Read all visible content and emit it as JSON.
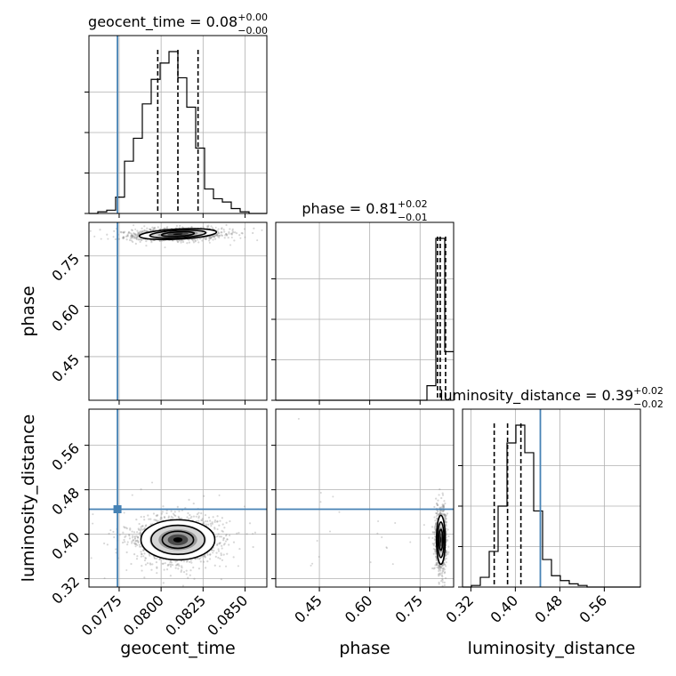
{
  "chart_data": {
    "type": "corner",
    "parameters": [
      "geocent_time",
      "phase",
      "luminosity_distance"
    ],
    "titles": [
      {
        "param": "geocent_time",
        "prefix": "geocent_time = ",
        "median": "0.08",
        "plus": "+0.00",
        "minus": "−0.00"
      },
      {
        "param": "phase",
        "prefix": "phase = ",
        "median": "0.81",
        "plus": "+0.02",
        "minus": "−0.01"
      },
      {
        "param": "luminosity_distance",
        "prefix": "luminosity_distance = ",
        "median": "0.39",
        "plus": "+0.02",
        "minus": "−0.02"
      }
    ],
    "axis_labels": {
      "x": [
        "geocent_time",
        "phase",
        "luminosity_distance"
      ],
      "y": [
        "phase",
        "luminosity_distance"
      ]
    },
    "ranges": {
      "geocent_time": [
        0.0757,
        0.0863
      ],
      "phase": [
        0.32,
        0.85
      ],
      "luminosity_distance": [
        0.305,
        0.625
      ]
    },
    "ticks": {
      "geocent_time": {
        "values": [
          0.0775,
          0.08,
          0.0825,
          0.085
        ],
        "labels": [
          "0.0775",
          "0.0800",
          "0.0825",
          "0.0850"
        ]
      },
      "phase": {
        "values": [
          0.45,
          0.6,
          0.75
        ],
        "labels": [
          "0.45",
          "0.60",
          "0.75"
        ]
      },
      "luminosity_distance": {
        "values": [
          0.32,
          0.4,
          0.48,
          0.56
        ],
        "labels": [
          "0.32",
          "0.40",
          "0.48",
          "0.56"
        ]
      }
    },
    "truths": {
      "geocent_time": 0.0774,
      "phase": null,
      "luminosity_distance": 0.445
    },
    "quantiles": {
      "geocent_time": [
        0.0798,
        0.081,
        0.0822
      ],
      "phase": [
        0.802,
        0.81,
        0.826
      ],
      "luminosity_distance": [
        0.362,
        0.386,
        0.41
      ]
    },
    "hist1d": {
      "geocent_time": {
        "edges_start": 0.0757,
        "bin_width": 0.00053,
        "counts": [
          0,
          1,
          2,
          10,
          32,
          46,
          67,
          82,
          92,
          99,
          83,
          65,
          40,
          15,
          9,
          7,
          3,
          1,
          0,
          0
        ]
      },
      "phase": {
        "edges_start": 0.32,
        "bin_width": 0.0265,
        "counts": [
          0,
          0,
          0,
          0,
          0,
          0,
          0,
          0,
          0,
          0,
          0,
          0,
          0,
          0,
          0,
          0,
          0,
          9,
          100,
          30
        ]
      },
      "luminosity_distance": {
        "edges_start": 0.305,
        "bin_width": 0.016,
        "counts": [
          0,
          1,
          6,
          22,
          50,
          89,
          100,
          83,
          47,
          17,
          7,
          4,
          2,
          1,
          0,
          0,
          0,
          0,
          0,
          0
        ]
      }
    },
    "posterior_2d": [
      {
        "x": "geocent_time",
        "y": "phase",
        "center": [
          0.081,
          0.815
        ],
        "sd": [
          0.00115,
          0.0075
        ],
        "rho": 0.15
      },
      {
        "x": "geocent_time",
        "y": "luminosity_distance",
        "center": [
          0.081,
          0.39
        ],
        "sd": [
          0.0011,
          0.018
        ],
        "rho": 0.0
      },
      {
        "x": "phase",
        "y": "luminosity_distance",
        "center": [
          0.812,
          0.39
        ],
        "sd": [
          0.0065,
          0.022
        ],
        "rho": 0.0
      }
    ],
    "grid": true,
    "colors": {
      "truth": "#4682b4",
      "hist": "#000000",
      "quantile": "#000000",
      "grid": "#b0b0b0",
      "points": "#8a8a8a"
    }
  }
}
